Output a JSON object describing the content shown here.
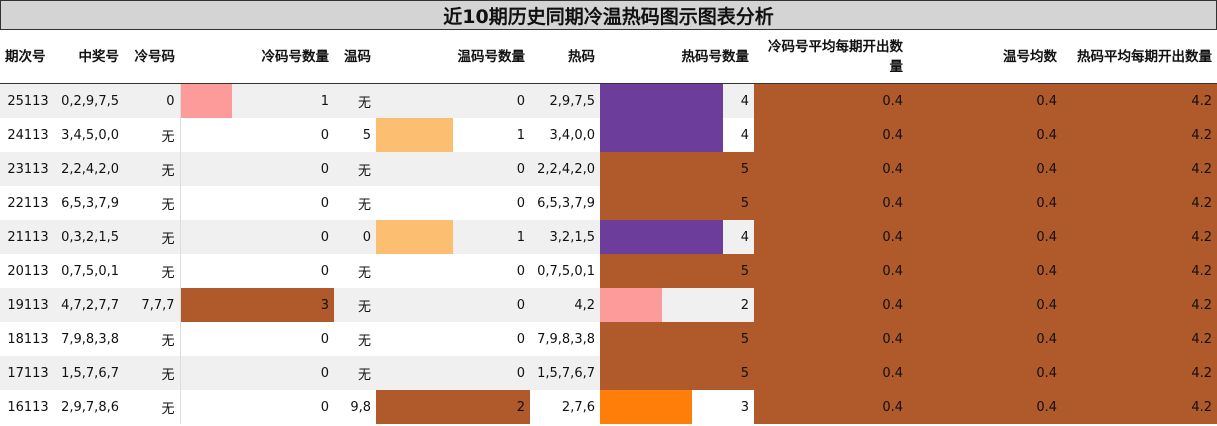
{
  "title": "近10期历史同期冷温热码图示图表分析",
  "headers": [
    "期次号",
    "中奖号",
    "冷号码",
    "冷码号数量",
    "温码",
    "温码号数量",
    "热码",
    "热码号数量",
    "冷码号平均每期开出数量",
    "温号均数",
    "热码平均每期开出数量"
  ],
  "rows": [
    {
      "issue": "25113",
      "winning": "0,2,9,7,5",
      "cold": "0",
      "cold_count": "1",
      "warm": "无",
      "warm_count": "0",
      "hot": "2,9,7,5",
      "hot_count": "4",
      "cold_avg": "0.4",
      "warm_avg": "0.4",
      "hot_avg": "4.2"
    },
    {
      "issue": "24113",
      "winning": "3,4,5,0,0",
      "cold": "无",
      "cold_count": "0",
      "warm": "5",
      "warm_count": "1",
      "hot": "3,4,0,0",
      "hot_count": "4",
      "cold_avg": "0.4",
      "warm_avg": "0.4",
      "hot_avg": "4.2"
    },
    {
      "issue": "23113",
      "winning": "2,2,4,2,0",
      "cold": "无",
      "cold_count": "0",
      "warm": "无",
      "warm_count": "0",
      "hot": "2,2,4,2,0",
      "hot_count": "5",
      "cold_avg": "0.4",
      "warm_avg": "0.4",
      "hot_avg": "4.2"
    },
    {
      "issue": "22113",
      "winning": "6,5,3,7,9",
      "cold": "无",
      "cold_count": "0",
      "warm": "无",
      "warm_count": "0",
      "hot": "6,5,3,7,9",
      "hot_count": "5",
      "cold_avg": "0.4",
      "warm_avg": "0.4",
      "hot_avg": "4.2"
    },
    {
      "issue": "21113",
      "winning": "0,3,2,1,5",
      "cold": "无",
      "cold_count": "0",
      "warm": "0",
      "warm_count": "1",
      "hot": "3,2,1,5",
      "hot_count": "4",
      "cold_avg": "0.4",
      "warm_avg": "0.4",
      "hot_avg": "4.2"
    },
    {
      "issue": "20113",
      "winning": "0,7,5,0,1",
      "cold": "无",
      "cold_count": "0",
      "warm": "无",
      "warm_count": "0",
      "hot": "0,7,5,0,1",
      "hot_count": "5",
      "cold_avg": "0.4",
      "warm_avg": "0.4",
      "hot_avg": "4.2"
    },
    {
      "issue": "19113",
      "winning": "4,7,2,7,7",
      "cold": "7,7,7",
      "cold_count": "3",
      "warm": "无",
      "warm_count": "0",
      "hot": "4,2",
      "hot_count": "2",
      "cold_avg": "0.4",
      "warm_avg": "0.4",
      "hot_avg": "4.2"
    },
    {
      "issue": "18113",
      "winning": "7,9,8,3,8",
      "cold": "无",
      "cold_count": "0",
      "warm": "无",
      "warm_count": "0",
      "hot": "7,9,8,3,8",
      "hot_count": "5",
      "cold_avg": "0.4",
      "warm_avg": "0.4",
      "hot_avg": "4.2"
    },
    {
      "issue": "17113",
      "winning": "1,5,7,6,7",
      "cold": "无",
      "cold_count": "0",
      "warm": "无",
      "warm_count": "0",
      "hot": "1,5,7,6,7",
      "hot_count": "5",
      "cold_avg": "0.4",
      "warm_avg": "0.4",
      "hot_avg": "4.2"
    },
    {
      "issue": "16113",
      "winning": "2,9,7,8,6",
      "cold": "无",
      "cold_count": "0",
      "warm": "9,8",
      "warm_count": "2",
      "hot": "2,7,6",
      "hot_count": "3",
      "cold_avg": "0.4",
      "warm_avg": "0.4",
      "hot_avg": "4.2"
    }
  ],
  "bars": {
    "cold_count": {
      "max": 3,
      "full_color": "#b0592a",
      "colors": {
        "1": "#fd9b9b",
        "3": "#b0592a"
      }
    },
    "warm_count": {
      "max": 2,
      "full_color": "#b0592a",
      "colors": {
        "1": "#fcbe71",
        "2": "#b0592a"
      }
    },
    "hot_count": {
      "max": 5,
      "full_color": "#b0592a",
      "colors": {
        "2": "#fd9b9b",
        "3": "#fd7f0a",
        "4": "#6d3d9b",
        "5": "#b0592a"
      }
    }
  },
  "avg_fill_color": "#b0592a"
}
